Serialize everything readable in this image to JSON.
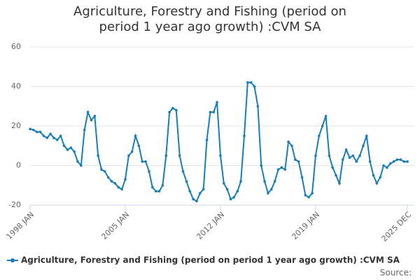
{
  "chart_data": {
    "type": "line",
    "title": "Agriculture, Forestry and Fishing (period on period 1 year ago growth) :CVM SA",
    "source": "Source:",
    "categories": [
      "1998 JAN",
      null,
      null,
      null,
      null,
      null,
      null,
      null,
      null,
      null,
      null,
      null,
      null,
      null,
      null,
      null,
      null,
      null,
      null,
      null,
      null,
      null,
      null,
      null,
      null,
      null,
      null,
      null,
      "2005 JAN",
      null,
      null,
      null,
      null,
      null,
      null,
      null,
      null,
      null,
      null,
      null,
      null,
      null,
      null,
      null,
      null,
      null,
      null,
      null,
      null,
      null,
      null,
      null,
      null,
      null,
      null,
      null,
      "2012 JAN",
      null,
      null,
      null,
      null,
      null,
      null,
      null,
      null,
      null,
      null,
      null,
      null,
      null,
      null,
      null,
      null,
      null,
      null,
      null,
      null,
      null,
      null,
      null,
      null,
      null,
      null,
      null,
      "2019 JAN",
      null,
      null,
      null,
      null,
      null,
      null,
      null,
      null,
      null,
      null,
      null,
      null,
      null,
      null,
      null,
      null,
      null,
      null,
      null,
      null,
      null,
      null,
      null,
      null,
      null,
      null,
      "2025 DEC"
    ],
    "series": [
      {
        "name": "Agriculture, Forestry and Fishing (period on period 1 year ago growth) :CVM SA",
        "color": "#1a7db6",
        "values": [
          18.5,
          18,
          17,
          17,
          15,
          14,
          16,
          14,
          13,
          15,
          10,
          8,
          9,
          7,
          2,
          0,
          18,
          27,
          23,
          25,
          5,
          -2,
          -3,
          -6,
          -8,
          -9,
          -11,
          -12,
          -7,
          5,
          7,
          15,
          10,
          2,
          2,
          -3,
          -11,
          -13,
          -13,
          -10,
          5,
          27,
          29,
          28,
          5,
          -3,
          -8,
          -13,
          -17,
          -18,
          -14,
          -12,
          13,
          27,
          27,
          32,
          5,
          -9,
          -12,
          -17,
          -16,
          -13,
          -8,
          15,
          42,
          42,
          40,
          30,
          0,
          -8,
          -14,
          -12,
          -8,
          -2,
          -1,
          -2,
          12,
          10,
          3,
          2,
          -6,
          -15,
          -16,
          -14,
          5,
          15,
          20,
          25,
          5,
          -1,
          -5,
          -9,
          3,
          8,
          4,
          5,
          2,
          5,
          10,
          15,
          2,
          -5,
          -9,
          -6,
          0,
          -1,
          1,
          2,
          3,
          3,
          2,
          2
        ]
      }
    ],
    "ylim": [
      -20,
      60
    ],
    "yticks": [
      -20,
      0,
      20,
      40,
      60
    ],
    "grid": true,
    "legend": "bottom"
  }
}
